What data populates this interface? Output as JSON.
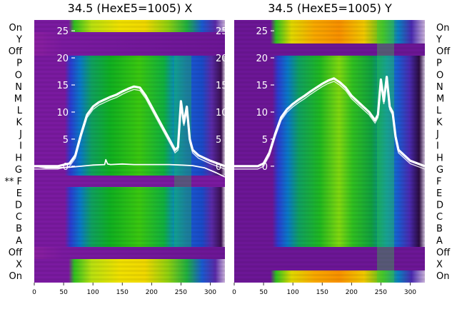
{
  "chart_data": [
    {
      "type": "heatmap",
      "title": "34.5 (HexE5=1005) X",
      "x_ticks": [
        0,
        50,
        100,
        150,
        200,
        250,
        300
      ],
      "xlim": [
        0,
        325
      ],
      "y_ticks": [
        0,
        5,
        10,
        15,
        20,
        25
      ],
      "ylim": [
        -21.5,
        27
      ],
      "row_labels": [
        "On",
        "Y",
        "Off",
        "P",
        "O",
        "N",
        "M",
        "L",
        "K",
        "J",
        "I",
        "H",
        "G",
        "** F",
        "E",
        "D",
        "C",
        "B",
        "A",
        "Off",
        "X",
        "On"
      ],
      "bands": [
        {
          "rows": "On (top)",
          "style": "yellow-green intensity"
        },
        {
          "rows": "Y, Off",
          "style": "purple (no signal)"
        },
        {
          "rows": "P - G",
          "style": "blue-green intensity"
        },
        {
          "rows": "F",
          "style": "purple gap"
        },
        {
          "rows": "E - A",
          "style": "blue-green intensity"
        },
        {
          "rows": "Off, X",
          "style": "purple (no signal)"
        },
        {
          "rows": "On (bottom)",
          "style": "yellow-green intensity"
        }
      ],
      "series": [
        {
          "x": [
            0,
            20,
            40,
            60,
            70,
            80,
            90,
            100,
            110,
            120,
            130,
            140,
            150,
            160,
            170,
            180,
            190,
            200,
            210,
            220,
            230,
            240,
            245,
            250,
            255,
            260,
            265,
            270,
            275,
            280,
            300,
            325
          ],
          "y": [
            0,
            0,
            0,
            0.5,
            2,
            6,
            9.5,
            11,
            11.8,
            12.3,
            12.8,
            13.2,
            13.8,
            14.3,
            14.7,
            14.5,
            13,
            11,
            9,
            7,
            5,
            3,
            3.5,
            12,
            8,
            11,
            5,
            3,
            2.5,
            2,
            1,
            0
          ]
        },
        {
          "x": [
            0,
            20,
            40,
            60,
            80,
            100,
            120,
            122,
            125,
            130,
            150,
            170,
            200,
            230,
            250,
            270,
            290,
            310,
            325
          ],
          "y": [
            0,
            -0.3,
            -0.3,
            -0.2,
            0,
            0.2,
            0.3,
            1.2,
            0.4,
            0.3,
            0.4,
            0.3,
            0.3,
            0.3,
            0.2,
            0.1,
            -0.3,
            -1.2,
            -2
          ]
        }
      ]
    },
    {
      "type": "heatmap",
      "title": "34.5 (HexE5=1005) Y",
      "x_ticks": [
        0,
        50,
        100,
        150,
        200,
        250,
        300
      ],
      "xlim": [
        0,
        325
      ],
      "y_ticks": [
        0,
        5,
        10,
        15,
        20,
        25
      ],
      "ylim": [
        -21.5,
        27
      ],
      "row_labels": [
        "On",
        "Y",
        "Off",
        "P",
        "O",
        "N",
        "M",
        "L",
        "K",
        "J",
        "I",
        "H",
        "G",
        "F",
        "E",
        "D",
        "C",
        "B",
        "A",
        "Off",
        "X",
        "On"
      ],
      "bands": [
        {
          "rows": "On (top)",
          "style": "orange-yellow intensity"
        },
        {
          "rows": "Y, Off",
          "style": "purple (no signal)"
        },
        {
          "rows": "P - A",
          "style": "blue-green intensity"
        },
        {
          "rows": "Off, X",
          "style": "purple (no signal)"
        },
        {
          "rows": "On (bottom)",
          "style": "orange-yellow intensity"
        }
      ],
      "series": [
        {
          "x": [
            0,
            20,
            40,
            50,
            60,
            70,
            80,
            90,
            100,
            110,
            120,
            130,
            140,
            150,
            160,
            170,
            180,
            190,
            200,
            210,
            220,
            230,
            240,
            245,
            250,
            255,
            260,
            265,
            270,
            275,
            280,
            300,
            325
          ],
          "y": [
            0,
            0,
            0,
            0.5,
            2.5,
            6,
            9,
            10.5,
            11.5,
            12.3,
            13,
            13.8,
            14.5,
            15.2,
            15.8,
            16.2,
            15.5,
            14.5,
            13,
            12,
            11,
            10,
            8.5,
            9.5,
            16,
            12,
            16.5,
            11,
            10,
            5.5,
            3,
            1,
            0
          ]
        }
      ]
    }
  ]
}
